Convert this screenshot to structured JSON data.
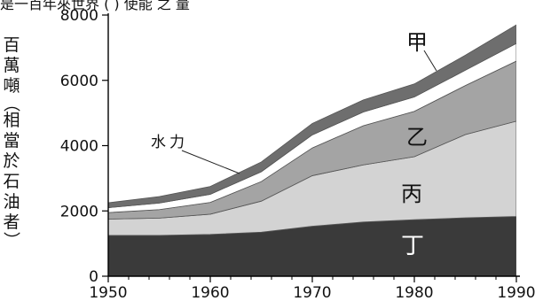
{
  "header_fragment": "是一百年來世界 ( ) 使能 之 量",
  "chart_data": {
    "type": "area",
    "stacked": true,
    "x": [
      1950,
      1955,
      1960,
      1965,
      1970,
      1975,
      1980,
      1985,
      1990
    ],
    "xlim": [
      1950,
      1990
    ],
    "ylim": [
      0,
      8000
    ],
    "xticks": [
      "1950",
      "1960",
      "1970",
      "1980",
      "1990"
    ],
    "yticks": [
      "0",
      "2000",
      "4000",
      "6000",
      "8000"
    ],
    "ylabel_chars": [
      "百",
      "萬",
      "噸",
      "（",
      "相",
      "當",
      "於",
      "石",
      "油",
      "者",
      "）"
    ],
    "series": [
      {
        "name": "丁",
        "values": [
          1250,
          1250,
          1280,
          1350,
          1530,
          1660,
          1730,
          1790,
          1830
        ],
        "color": "#3a3a3a"
      },
      {
        "name": "丙",
        "values": [
          500,
          530,
          620,
          950,
          1550,
          1750,
          1930,
          2550,
          2920
        ],
        "color": "#d3d3d3"
      },
      {
        "name": "乙",
        "values": [
          200,
          260,
          360,
          600,
          850,
          1200,
          1390,
          1500,
          1840
        ],
        "color": "#a4a4a4"
      },
      {
        "name": "水力",
        "values": [
          150,
          200,
          250,
          300,
          400,
          420,
          440,
          470,
          540
        ],
        "color": "#ffffff"
      },
      {
        "name": "甲",
        "values": [
          150,
          200,
          240,
          300,
          350,
          370,
          400,
          460,
          570
        ],
        "color": "#6e6e6e"
      }
    ]
  }
}
